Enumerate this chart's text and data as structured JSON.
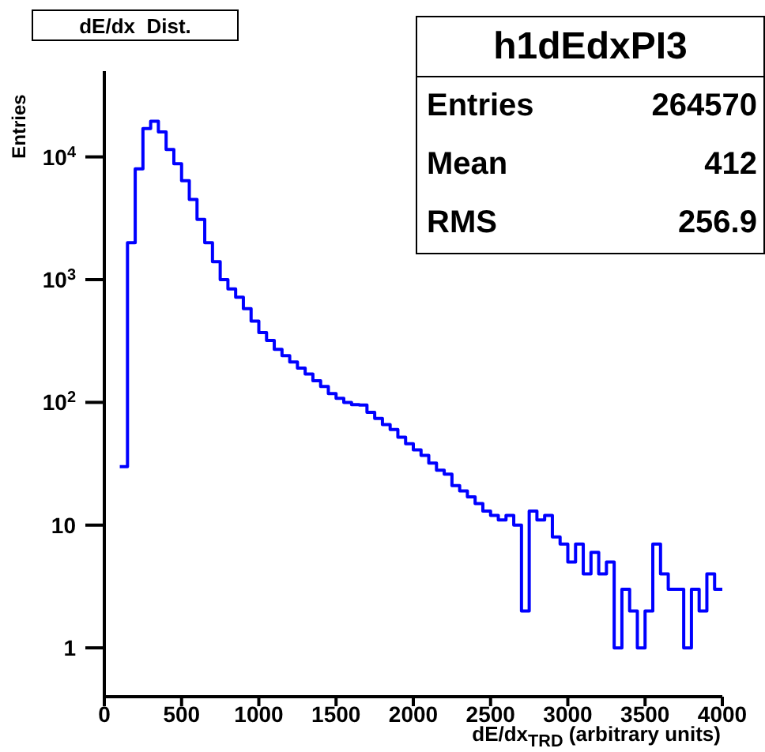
{
  "chart_data": {
    "type": "histogram",
    "title": "dE/dx  Dist.",
    "xlabel": "dE/dx$_{TRD}$ (arbitrary units)",
    "ylabel": "Entries",
    "annotations": [
      "h1dEdxPI3",
      "Entries 264570",
      "Mean 412",
      "RMS 256.9"
    ],
    "bins": [
      100,
      150,
      200,
      250,
      300,
      350,
      400,
      450,
      500,
      550,
      600,
      650,
      700,
      750,
      800,
      850,
      900,
      950,
      1000,
      1050,
      1100,
      1150,
      1200,
      1250,
      1300,
      1350,
      1400,
      1450,
      1500,
      1550,
      1600,
      1650,
      1700,
      1750,
      1800,
      1850,
      1900,
      1950,
      2000,
      2050,
      2100,
      2150,
      2200,
      2250,
      2300,
      2350,
      2400,
      2450,
      2500,
      2550,
      2600,
      2650,
      2700,
      2750,
      2800,
      2850,
      2900,
      2950,
      3000,
      3050,
      3100,
      3150,
      3200,
      3250,
      3300,
      3350,
      3400,
      3450,
      3500,
      3550,
      3600,
      3650,
      3700,
      3750,
      3800,
      3850,
      3900,
      3950,
      4000
    ],
    "values": [
      30,
      2000,
      8000,
      17000,
      19500,
      16000,
      11500,
      8800,
      6400,
      4500,
      3100,
      2000,
      1400,
      1000,
      840,
      720,
      580,
      460,
      370,
      320,
      270,
      240,
      213,
      190,
      170,
      150,
      135,
      118,
      108,
      100,
      96,
      95,
      83,
      74,
      66,
      60,
      52,
      46,
      41,
      37,
      32,
      28,
      26,
      21,
      19,
      17,
      15,
      13,
      12,
      11,
      12,
      10,
      2,
      13,
      11,
      12,
      8,
      7,
      5,
      7,
      4,
      6,
      4,
      5,
      1,
      3,
      2,
      1,
      2,
      7,
      4,
      3,
      3,
      1,
      3,
      2,
      4,
      3
    ],
    "color": "#0000ff",
    "log": "y",
    "xlim": [
      0,
      4000
    ],
    "xticks": [
      0,
      500,
      1000,
      1500,
      2000,
      2500,
      3000,
      3500,
      4000
    ],
    "ylim": [
      0.4,
      50000
    ],
    "yticks": [
      1,
      10,
      {
        "value": 100,
        "label": "10$^{2}$"
      },
      {
        "value": 1000,
        "label": "10$^{3}$"
      },
      {
        "value": 10000,
        "label": "10$^{4}$"
      }
    ],
    "grid": false
  }
}
